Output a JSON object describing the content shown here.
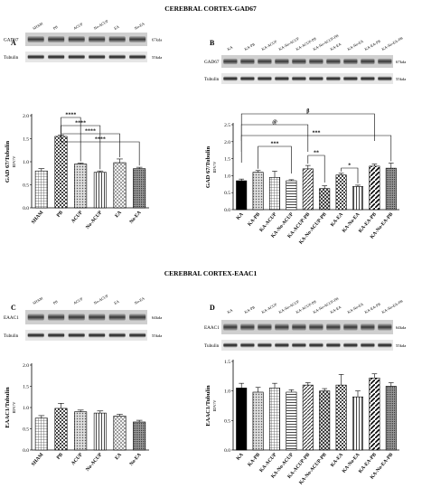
{
  "figure": {
    "title_top": "CEREBRAL CORTEX-GAD67",
    "title_bottom": "CEREBRAL CORTEX-EAAC1"
  },
  "chart_data": [
    {
      "panel": "A",
      "type": "bar",
      "blot": {
        "lanes": [
          "SHAM",
          "PB",
          "ACUP",
          "No-ACUP",
          "EA",
          "No-EA"
        ],
        "rows": [
          {
            "label": "GAD67",
            "size": "67kda"
          },
          {
            "label": "Tubulin",
            "size": "55kda"
          }
        ]
      },
      "categories": [
        "SHAM",
        "PB",
        "ACUP",
        "No-ACUP",
        "EA",
        "No-EA"
      ],
      "values": [
        0.8,
        1.55,
        0.95,
        0.77,
        0.98,
        0.85
      ],
      "errors": [
        0.05,
        0.03,
        0.02,
        0.03,
        0.08,
        0.03
      ],
      "patterns": [
        "grid",
        "checker",
        "dots",
        "vertical",
        "crossdots",
        "dense"
      ],
      "ylabel": "GAD 67/Tubulin",
      "ylabel2": "IDV/V",
      "ylim": [
        0,
        2.0
      ],
      "yticks": [
        "0.0",
        "0.5",
        "1.0",
        "1.5",
        "2.0"
      ],
      "significance": [
        {
          "from": "PB",
          "to": "ACUP",
          "label": "****"
        },
        {
          "from": "PB",
          "to": "No-ACUP",
          "label": "****"
        },
        {
          "from": "PB",
          "to": "EA",
          "label": "****"
        },
        {
          "from": "PB",
          "to": "No-EA",
          "label": "****"
        }
      ]
    },
    {
      "panel": "B",
      "type": "bar",
      "blot": {
        "lanes": [
          "KA",
          "KA-PB",
          "KA-ACUP",
          "KA-No-ACUP",
          "KA-ACUP-PB",
          "KA-No-ACUP-PB",
          "KA-EA",
          "KA-No-EA",
          "KA-EA-PB",
          "KA-No-EA-PB"
        ],
        "rows": [
          {
            "label": "GAD67",
            "size": "67kda"
          },
          {
            "label": "Tubulin",
            "size": "55kda"
          }
        ]
      },
      "categories": [
        "KA",
        "KA-PB",
        "KA-ACUP",
        "KA-No-ACUP",
        "KA-ACUP-PB",
        "KA-No-ACUP-PB",
        "KA-EA",
        "KA-No-EA",
        "KA-EA-PB",
        "KA-No-EA-PB"
      ],
      "values": [
        0.85,
        1.1,
        0.95,
        0.85,
        1.2,
        0.62,
        1.02,
        0.68,
        1.28,
        1.22
      ],
      "errors": [
        0.05,
        0.05,
        0.18,
        0.03,
        0.1,
        0.08,
        0.05,
        0.04,
        0.06,
        0.15
      ],
      "patterns": [
        "solid",
        "dots",
        "grid",
        "horizontal",
        "diagonal",
        "crossdiag",
        "checker",
        "vertical",
        "diagonal2",
        "dense"
      ],
      "ylabel": "GAD 67/Tubulin",
      "ylabel2": "IDV/V",
      "ylim": [
        0,
        2.5
      ],
      "yticks": [
        "0.0",
        "0.5",
        "1.0",
        "1.5",
        "2.0",
        "2.5"
      ],
      "significance": [
        {
          "from": "KA",
          "to": "KA-EA-PB",
          "label": "β"
        },
        {
          "from": "KA",
          "to": "KA-ACUP-PB",
          "label": "@"
        },
        {
          "from": "KA",
          "to": "KA-No-EA-PB",
          "label": "***"
        },
        {
          "from": "KA-PB",
          "to": "KA-No-ACUP",
          "label": "***"
        },
        {
          "from": "KA-ACUP-PB",
          "to": "KA-No-ACUP-PB",
          "label": "**"
        },
        {
          "from": "KA-EA",
          "to": "KA-No-EA",
          "label": "*"
        }
      ]
    },
    {
      "panel": "C",
      "type": "bar",
      "blot": {
        "lanes": [
          "SHAM",
          "PB",
          "ACUP",
          "No-ACUP",
          "EA",
          "No-EA"
        ],
        "rows": [
          {
            "label": "EAAC1",
            "size": "64kda"
          },
          {
            "label": "Tubulin",
            "size": "55kda"
          }
        ]
      },
      "categories": [
        "SHAM",
        "PB",
        "ACUP",
        "No-ACUP",
        "EA",
        "No-EA"
      ],
      "values": [
        0.75,
        0.98,
        0.9,
        0.87,
        0.8,
        0.66
      ],
      "errors": [
        0.06,
        0.12,
        0.04,
        0.05,
        0.04,
        0.04
      ],
      "patterns": [
        "grid",
        "checker",
        "dots",
        "vertical",
        "crossdots",
        "dense"
      ],
      "ylabel": "EAAC1/Tubulin",
      "ylabel2": "IDV/V",
      "ylim": [
        0,
        2.0
      ],
      "yticks": [
        "0.0",
        "0.5",
        "1.0",
        "1.5",
        "2.0"
      ],
      "significance": []
    },
    {
      "panel": "D",
      "type": "bar",
      "blot": {
        "lanes": [
          "KA",
          "KA-PB",
          "KA-ACUP",
          "KA-No-ACUP",
          "KA-ACUP-PB",
          "KA-No-ACUP-PB",
          "KA-EA",
          "KA-No-EA",
          "KA-EA-PB",
          "KA-No-EA-PB"
        ],
        "rows": [
          {
            "label": "EAAC1",
            "size": "64kda"
          },
          {
            "label": "Tubulin",
            "size": "55kda"
          }
        ]
      },
      "categories": [
        "KA",
        "KA-PB",
        "KA-ACUP",
        "KA-No-ACUP",
        "KA-ACUP-PB",
        "KA-No-ACUP-PB",
        "KA-EA",
        "KA-No-EA",
        "KA-EA-PB",
        "KA-No-EA-PB"
      ],
      "values": [
        1.05,
        0.98,
        1.05,
        0.98,
        1.1,
        1.0,
        1.1,
        0.9,
        1.22,
        1.08
      ],
      "errors": [
        0.08,
        0.08,
        0.08,
        0.04,
        0.04,
        0.04,
        0.18,
        0.1,
        0.07,
        0.06
      ],
      "patterns": [
        "solid",
        "dots",
        "grid",
        "horizontal",
        "diagonal",
        "crossdiag",
        "checker",
        "vertical",
        "diagonal2",
        "dense"
      ],
      "ylabel": "EAAC1/Tubulin",
      "ylabel2": "IDV/V",
      "ylim": [
        0,
        1.5
      ],
      "yticks": [
        "0.0",
        "0.5",
        "1.0",
        "1.5"
      ],
      "significance": []
    }
  ]
}
